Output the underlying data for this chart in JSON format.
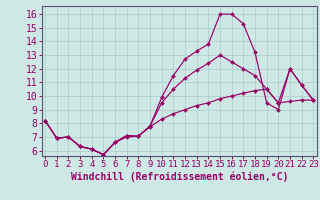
{
  "xlabel": "Windchill (Refroidissement éolien,°C)",
  "bg_color": "#cde8e5",
  "line_color": "#990066",
  "grid_color": "#aacccc",
  "x_ticks": [
    0,
    1,
    2,
    3,
    4,
    5,
    6,
    7,
    8,
    9,
    10,
    11,
    12,
    13,
    14,
    15,
    16,
    17,
    18,
    19,
    20,
    21,
    22,
    23
  ],
  "y_ticks": [
    6,
    7,
    8,
    9,
    10,
    11,
    12,
    13,
    14,
    15,
    16
  ],
  "xlim": [
    -0.3,
    23.3
  ],
  "ylim": [
    5.6,
    16.6
  ],
  "line1_y": [
    8.2,
    6.9,
    7.0,
    6.3,
    6.1,
    5.7,
    6.6,
    7.1,
    7.05,
    7.8,
    9.9,
    11.5,
    12.7,
    13.3,
    13.8,
    16.0,
    16.0,
    15.3,
    13.2,
    9.5,
    9.0,
    12.0,
    10.8,
    9.7
  ],
  "line2_y": [
    8.2,
    6.9,
    7.0,
    6.3,
    6.1,
    5.7,
    6.6,
    7.1,
    7.05,
    7.8,
    9.5,
    10.5,
    11.3,
    11.9,
    12.4,
    13.0,
    12.5,
    12.0,
    11.5,
    10.5,
    9.5,
    12.0,
    10.8,
    9.7
  ],
  "line3_y": [
    8.2,
    6.9,
    7.0,
    6.3,
    6.1,
    5.7,
    6.6,
    7.0,
    7.05,
    7.75,
    8.3,
    8.7,
    9.0,
    9.3,
    9.5,
    9.8,
    10.0,
    10.2,
    10.4,
    10.5,
    9.5,
    9.6,
    9.7,
    9.7
  ],
  "font_size_xlabel": 7,
  "font_size_ytick": 7,
  "font_size_xtick": 6.5
}
